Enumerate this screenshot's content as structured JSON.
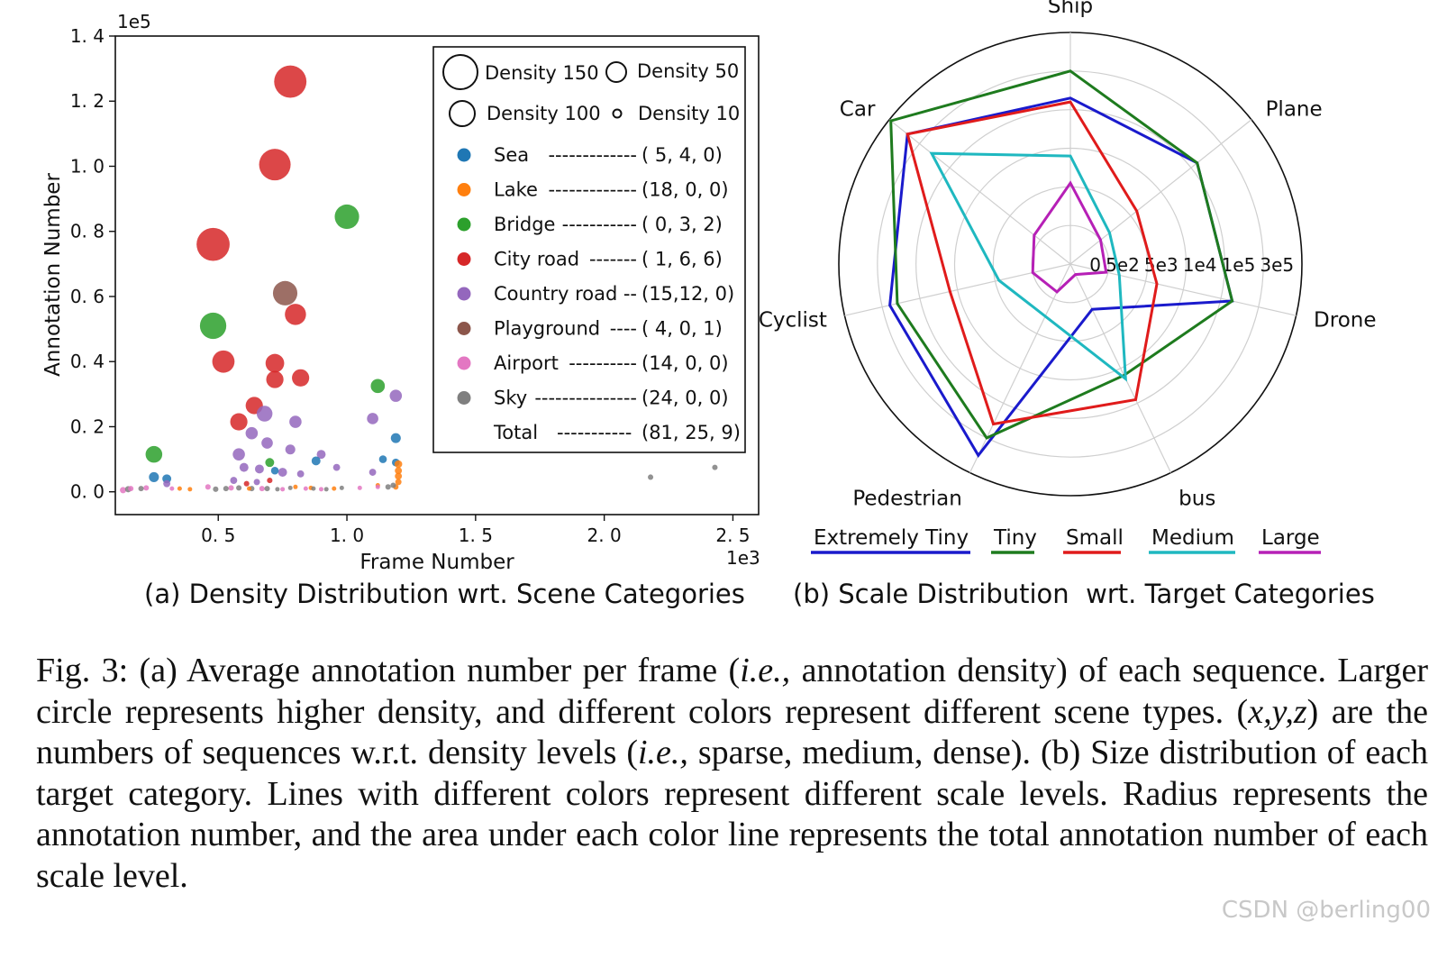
{
  "chart_data": [
    {
      "type": "scatter",
      "subcaption": "(a) Density Distribution wrt. Scene Categories",
      "xlabel": "Frame Number",
      "ylabel": "Annotation Number",
      "x_multiplier": "1e3",
      "y_multiplier": "1e5",
      "xlim": [
        0.1,
        2.6
      ],
      "ylim": [
        -0.07,
        1.4
      ],
      "x_ticks": [
        0.5,
        1.0,
        1.5,
        2.0,
        2.5
      ],
      "y_ticks": [
        0.0,
        0.2,
        0.4,
        0.6,
        0.8,
        1.0,
        1.2,
        1.4
      ],
      "x_tick_labels": [
        "0. 5",
        "1. 0",
        "1. 5",
        "2. 0",
        "2. 5"
      ],
      "y_tick_labels": [
        "0. 0",
        "0. 2",
        "0. 4",
        "0. 6",
        "0. 8",
        "1. 0",
        "1. 2",
        "1. 4"
      ],
      "size_legend": [
        {
          "label": "Density 150",
          "density": 150
        },
        {
          "label": "Density 50",
          "density": 50
        },
        {
          "label": "Density 100",
          "density": 100
        },
        {
          "label": "Density 10",
          "density": 10
        }
      ],
      "categories": [
        {
          "name": "Sea",
          "color": "#1f77b4",
          "dashes": "-------------",
          "counts": "( 5, 4, 0)"
        },
        {
          "name": "Lake",
          "color": "#ff7f0e",
          "dashes": "-------------",
          "counts": "(18, 0, 0)"
        },
        {
          "name": "Bridge",
          "color": "#2ca02c",
          "dashes": "-----------",
          "counts": "( 0, 3, 2)"
        },
        {
          "name": "City road",
          "color": "#d62728",
          "dashes": "-------",
          "counts": "( 1, 6, 6)"
        },
        {
          "name": "Country road",
          "color": "#9467bd",
          "dashes": "--",
          "counts": "(15,12, 0)"
        },
        {
          "name": "Playground",
          "color": "#8c564b",
          "dashes": "----",
          "counts": "( 4, 0, 1)"
        },
        {
          "name": "Airport",
          "color": "#e377c2",
          "dashes": "----------",
          "counts": "(14, 0, 0)"
        },
        {
          "name": "Sky",
          "color": "#7f7f7f",
          "dashes": "---------------",
          "counts": "(24, 0, 0)"
        }
      ],
      "total": {
        "name": "Total",
        "dashes": "-----------",
        "counts": "(81, 25, 9)"
      },
      "points": [
        {
          "cat": 3,
          "x": 0.78,
          "y": 1.26,
          "d": 105
        },
        {
          "cat": 3,
          "x": 0.72,
          "y": 1.005,
          "d": 100
        },
        {
          "cat": 3,
          "x": 0.48,
          "y": 0.76,
          "d": 110
        },
        {
          "cat": 3,
          "x": 0.8,
          "y": 0.545,
          "d": 45
        },
        {
          "cat": 3,
          "x": 0.52,
          "y": 0.4,
          "d": 50
        },
        {
          "cat": 3,
          "x": 0.72,
          "y": 0.395,
          "d": 35
        },
        {
          "cat": 3,
          "x": 0.72,
          "y": 0.345,
          "d": 30
        },
        {
          "cat": 3,
          "x": 0.82,
          "y": 0.35,
          "d": 30
        },
        {
          "cat": 3,
          "x": 0.64,
          "y": 0.265,
          "d": 30
        },
        {
          "cat": 3,
          "x": 0.58,
          "y": 0.215,
          "d": 30
        },
        {
          "cat": 3,
          "x": 0.61,
          "y": 0.025,
          "d": 3
        },
        {
          "cat": 3,
          "x": 0.7,
          "y": 0.035,
          "d": 3
        },
        {
          "cat": 2,
          "x": 1.0,
          "y": 0.845,
          "d": 60
        },
        {
          "cat": 2,
          "x": 0.48,
          "y": 0.51,
          "d": 70
        },
        {
          "cat": 2,
          "x": 1.12,
          "y": 0.325,
          "d": 20
        },
        {
          "cat": 2,
          "x": 0.25,
          "y": 0.115,
          "d": 28
        },
        {
          "cat": 2,
          "x": 0.7,
          "y": 0.09,
          "d": 8
        },
        {
          "cat": 5,
          "x": 0.76,
          "y": 0.61,
          "d": 60
        },
        {
          "cat": 4,
          "x": 0.68,
          "y": 0.24,
          "d": 25
        },
        {
          "cat": 4,
          "x": 0.8,
          "y": 0.215,
          "d": 15
        },
        {
          "cat": 4,
          "x": 1.1,
          "y": 0.225,
          "d": 13
        },
        {
          "cat": 4,
          "x": 1.19,
          "y": 0.295,
          "d": 15
        },
        {
          "cat": 4,
          "x": 0.63,
          "y": 0.18,
          "d": 15
        },
        {
          "cat": 4,
          "x": 0.69,
          "y": 0.15,
          "d": 13
        },
        {
          "cat": 4,
          "x": 0.58,
          "y": 0.115,
          "d": 15
        },
        {
          "cat": 4,
          "x": 0.78,
          "y": 0.13,
          "d": 10
        },
        {
          "cat": 4,
          "x": 0.9,
          "y": 0.115,
          "d": 8
        },
        {
          "cat": 4,
          "x": 0.6,
          "y": 0.075,
          "d": 8
        },
        {
          "cat": 4,
          "x": 0.66,
          "y": 0.07,
          "d": 8
        },
        {
          "cat": 4,
          "x": 0.75,
          "y": 0.06,
          "d": 8
        },
        {
          "cat": 4,
          "x": 0.82,
          "y": 0.055,
          "d": 5
        },
        {
          "cat": 4,
          "x": 0.96,
          "y": 0.075,
          "d": 5
        },
        {
          "cat": 4,
          "x": 1.1,
          "y": 0.06,
          "d": 5
        },
        {
          "cat": 4,
          "x": 0.56,
          "y": 0.035,
          "d": 5
        },
        {
          "cat": 4,
          "x": 0.3,
          "y": 0.025,
          "d": 5
        },
        {
          "cat": 4,
          "x": 0.65,
          "y": 0.03,
          "d": 4
        },
        {
          "cat": 0,
          "x": 1.19,
          "y": 0.165,
          "d": 10
        },
        {
          "cat": 0,
          "x": 0.88,
          "y": 0.095,
          "d": 8
        },
        {
          "cat": 0,
          "x": 1.14,
          "y": 0.1,
          "d": 6
        },
        {
          "cat": 0,
          "x": 1.19,
          "y": 0.09,
          "d": 6
        },
        {
          "cat": 0,
          "x": 0.72,
          "y": 0.065,
          "d": 6
        },
        {
          "cat": 0,
          "x": 0.25,
          "y": 0.045,
          "d": 10
        },
        {
          "cat": 0,
          "x": 0.3,
          "y": 0.04,
          "d": 8
        },
        {
          "cat": 1,
          "x": 1.2,
          "y": 0.085,
          "d": 6
        },
        {
          "cat": 1,
          "x": 1.2,
          "y": 0.065,
          "d": 5
        },
        {
          "cat": 1,
          "x": 1.2,
          "y": 0.048,
          "d": 5
        },
        {
          "cat": 1,
          "x": 1.2,
          "y": 0.03,
          "d": 4
        },
        {
          "cat": 1,
          "x": 1.19,
          "y": 0.015,
          "d": 3
        },
        {
          "cat": 1,
          "x": 0.35,
          "y": 0.01,
          "d": 2
        },
        {
          "cat": 1,
          "x": 0.39,
          "y": 0.008,
          "d": 2
        },
        {
          "cat": 1,
          "x": 0.62,
          "y": 0.01,
          "d": 2
        },
        {
          "cat": 1,
          "x": 0.86,
          "y": 0.012,
          "d": 2
        },
        {
          "cat": 1,
          "x": 1.12,
          "y": 0.02,
          "d": 2
        },
        {
          "cat": 1,
          "x": 0.8,
          "y": 0.015,
          "d": 2
        },
        {
          "cat": 1,
          "x": 0.95,
          "y": 0.01,
          "d": 2
        },
        {
          "cat": 6,
          "x": 0.13,
          "y": 0.005,
          "d": 4
        },
        {
          "cat": 6,
          "x": 0.16,
          "y": 0.01,
          "d": 3
        },
        {
          "cat": 6,
          "x": 0.22,
          "y": 0.012,
          "d": 3
        },
        {
          "cat": 6,
          "x": 0.46,
          "y": 0.015,
          "d": 3
        },
        {
          "cat": 6,
          "x": 0.55,
          "y": 0.012,
          "d": 3
        },
        {
          "cat": 6,
          "x": 0.67,
          "y": 0.01,
          "d": 3
        },
        {
          "cat": 6,
          "x": 0.84,
          "y": 0.01,
          "d": 2
        },
        {
          "cat": 6,
          "x": 1.05,
          "y": 0.012,
          "d": 2
        },
        {
          "cat": 6,
          "x": 1.12,
          "y": 0.015,
          "d": 2
        },
        {
          "cat": 6,
          "x": 0.75,
          "y": 0.008,
          "d": 2
        },
        {
          "cat": 6,
          "x": 0.9,
          "y": 0.008,
          "d": 2
        },
        {
          "cat": 6,
          "x": 0.32,
          "y": 0.01,
          "d": 2
        },
        {
          "cat": 7,
          "x": 0.15,
          "y": 0.008,
          "d": 4
        },
        {
          "cat": 7,
          "x": 0.2,
          "y": 0.01,
          "d": 3
        },
        {
          "cat": 7,
          "x": 0.49,
          "y": 0.008,
          "d": 3
        },
        {
          "cat": 7,
          "x": 0.53,
          "y": 0.01,
          "d": 3
        },
        {
          "cat": 7,
          "x": 0.58,
          "y": 0.012,
          "d": 3
        },
        {
          "cat": 7,
          "x": 0.63,
          "y": 0.01,
          "d": 3
        },
        {
          "cat": 7,
          "x": 0.69,
          "y": 0.01,
          "d": 3
        },
        {
          "cat": 7,
          "x": 0.73,
          "y": 0.008,
          "d": 2
        },
        {
          "cat": 7,
          "x": 0.78,
          "y": 0.012,
          "d": 2
        },
        {
          "cat": 7,
          "x": 0.87,
          "y": 0.01,
          "d": 2
        },
        {
          "cat": 7,
          "x": 0.92,
          "y": 0.008,
          "d": 2
        },
        {
          "cat": 7,
          "x": 0.98,
          "y": 0.012,
          "d": 2
        },
        {
          "cat": 7,
          "x": 1.16,
          "y": 0.015,
          "d": 3
        },
        {
          "cat": 7,
          "x": 1.18,
          "y": 0.02,
          "d": 3
        },
        {
          "cat": 7,
          "x": 2.18,
          "y": 0.045,
          "d": 3
        },
        {
          "cat": 7,
          "x": 2.43,
          "y": 0.075,
          "d": 3
        }
      ]
    },
    {
      "type": "radar",
      "subcaption": "(b) Scale Distribution  wrt. Target Categories",
      "axes": [
        "Ship",
        "Plane",
        "Drone",
        "bus",
        "Pedestrian",
        "Cyclist",
        "Car"
      ],
      "ring_labels": [
        "0",
        "5e2",
        "5e3",
        "1e4",
        "1e5",
        "3e5"
      ],
      "ring_values": [
        0,
        1,
        2,
        3,
        4,
        5
      ],
      "max_value": 6,
      "series": [
        {
          "name": "Extremely Tiny",
          "color": "#1a1acc",
          "values": [
            4.3,
            4.2,
            4.3,
            1.3,
            5.5,
            4.8,
            5.4
          ]
        },
        {
          "name": "Tiny",
          "color": "#1e7b1e",
          "values": [
            5.0,
            4.2,
            4.3,
            3.2,
            5.0,
            4.6,
            5.95
          ]
        },
        {
          "name": "Small",
          "color": "#e01b1b",
          "values": [
            4.2,
            2.2,
            2.3,
            3.9,
            4.6,
            3.2,
            5.4
          ]
        },
        {
          "name": "Medium",
          "color": "#1fb8c0",
          "values": [
            2.8,
            1.3,
            1.3,
            3.3,
            1.5,
            1.9,
            4.6
          ]
        },
        {
          "name": "Large",
          "color": "#b620b6",
          "values": [
            2.1,
            1.0,
            0.95,
            0.3,
            0.8,
            1.0,
            1.2
          ]
        }
      ]
    }
  ],
  "caption": {
    "t1": "Fig. 3: (a) Average annotation number per frame (",
    "ie1": "i.e.,",
    "t2": " annotation density) of each sequence. Larger circle represents higher density, and different colors represent different scene types. (",
    "xyz": "x,y,z",
    "t3": ") are the numbers of sequences w.r.t. density levels (",
    "ie2": "i.e.,",
    "t4": " sparse, medium, dense). (b) Size distribution of each target category. Lines with different colors represent different scale levels. Radius represents the annotation number, and the area under each color line represents the total annotation number of each scale level."
  },
  "watermark": "CSDN @berling00"
}
